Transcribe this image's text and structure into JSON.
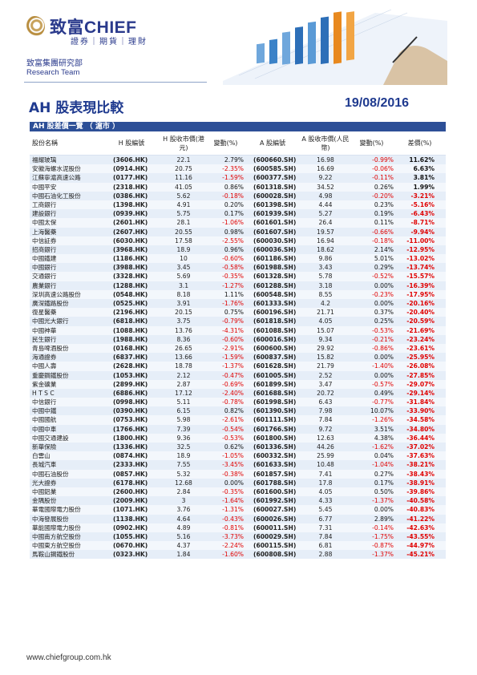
{
  "header": {
    "brand": "致富CHIEF",
    "brand_sub": "證券｜期貨｜理財",
    "dept_cn": "致富集團研究部",
    "dept_en": "Research Team",
    "report_title": "AH 股表現比較",
    "report_date": "19/08/2016"
  },
  "table": {
    "title": "AH 股差價一覽 （ 滬市 ）",
    "columns": [
      "股份名稱",
      "H 股編號",
      "H 股收市價(港元)",
      "變動(%)",
      "A 股編號",
      "A 股收市價(人民幣)",
      "變動(%)",
      "差價(%)"
    ],
    "rows": [
      [
        "福耀玻璃",
        "(3606.HK)",
        "22.1",
        "2.79%",
        "(600660.SH)",
        "16.98",
        "-0.99%",
        "11.62%"
      ],
      [
        "安徽海螺水泥股份",
        "(0914.HK)",
        "20.75",
        "-2.35%",
        "(600585.SH)",
        "16.69",
        "-0.06%",
        "6.63%"
      ],
      [
        "江蘇寧滬高速公路",
        "(0177.HK)",
        "11.16",
        "-1.59%",
        "(600377.SH)",
        "9.22",
        "-0.11%",
        "3.81%"
      ],
      [
        "中國平安",
        "(2318.HK)",
        "41.05",
        "0.86%",
        "(601318.SH)",
        "34.52",
        "0.26%",
        "1.99%"
      ],
      [
        "中國石油化工股份",
        "(0386.HK)",
        "5.62",
        "-0.18%",
        "(600028.SH)",
        "4.98",
        "-0.20%",
        "-3.21%"
      ],
      [
        "工商銀行",
        "(1398.HK)",
        "4.91",
        "0.20%",
        "(601398.SH)",
        "4.44",
        "0.23%",
        "-5.16%"
      ],
      [
        "建設銀行",
        "(0939.HK)",
        "5.75",
        "0.17%",
        "(601939.SH)",
        "5.27",
        "0.19%",
        "-6.43%"
      ],
      [
        "中國太保",
        "(2601.HK)",
        "28.1",
        "-1.06%",
        "(601601.SH)",
        "26.4",
        "0.11%",
        "-8.71%"
      ],
      [
        "上海醫藥",
        "(2607.HK)",
        "20.55",
        "0.98%",
        "(601607.SH)",
        "19.57",
        "-0.66%",
        "-9.94%"
      ],
      [
        "中信証券",
        "(6030.HK)",
        "17.58",
        "-2.55%",
        "(600030.SH)",
        "16.94",
        "-0.18%",
        "-11.00%"
      ],
      [
        "招商銀行",
        "(3968.HK)",
        "18.9",
        "0.96%",
        "(600036.SH)",
        "18.62",
        "2.14%",
        "-12.95%"
      ],
      [
        "中國鐵建",
        "(1186.HK)",
        "10",
        "-0.60%",
        "(601186.SH)",
        "9.86",
        "5.01%",
        "-13.02%"
      ],
      [
        "中國銀行",
        "(3988.HK)",
        "3.45",
        "-0.58%",
        "(601988.SH)",
        "3.43",
        "0.29%",
        "-13.74%"
      ],
      [
        "交通銀行",
        "(3328.HK)",
        "5.69",
        "-0.35%",
        "(601328.SH)",
        "5.78",
        "-0.52%",
        "-15.57%"
      ],
      [
        "農業銀行",
        "(1288.HK)",
        "3.1",
        "-1.27%",
        "(601288.SH)",
        "3.18",
        "0.00%",
        "-16.39%"
      ],
      [
        "深圳高速公路股份",
        "(0548.HK)",
        "8.18",
        "1.11%",
        "(600548.SH)",
        "8.55",
        "-0.23%",
        "-17.95%"
      ],
      [
        "廣深鐵路股份",
        "(0525.HK)",
        "3.91",
        "-1.76%",
        "(601333.SH)",
        "4.2",
        "0.00%",
        "-20.16%"
      ],
      [
        "復星醫藥",
        "(2196.HK)",
        "20.15",
        "0.75%",
        "(600196.SH)",
        "21.71",
        "0.37%",
        "-20.40%"
      ],
      [
        "中國光大銀行",
        "(6818.HK)",
        "3.75",
        "-0.79%",
        "(601818.SH)",
        "4.05",
        "0.25%",
        "-20.59%"
      ],
      [
        "中國神華",
        "(1088.HK)",
        "13.76",
        "-4.31%",
        "(601088.SH)",
        "15.07",
        "-0.53%",
        "-21.69%"
      ],
      [
        "民生銀行",
        "(1988.HK)",
        "8.36",
        "-0.60%",
        "(600016.SH)",
        "9.34",
        "-0.21%",
        "-23.24%"
      ],
      [
        "青島啤酒股份",
        "(0168.HK)",
        "26.65",
        "-2.91%",
        "(600600.SH)",
        "29.92",
        "-0.86%",
        "-23.61%"
      ],
      [
        "海通證券",
        "(6837.HK)",
        "13.66",
        "-1.59%",
        "(600837.SH)",
        "15.82",
        "0.00%",
        "-25.95%"
      ],
      [
        "中國人壽",
        "(2628.HK)",
        "18.78",
        "-1.37%",
        "(601628.SH)",
        "21.79",
        "-1.40%",
        "-26.08%"
      ],
      [
        "重慶鋼鐵股份",
        "(1053.HK)",
        "2.12",
        "-0.47%",
        "(601005.SH)",
        "2.52",
        "0.00%",
        "-27.85%"
      ],
      [
        "紫金礦業",
        "(2899.HK)",
        "2.87",
        "-0.69%",
        "(601899.SH)",
        "3.47",
        "-0.57%",
        "-29.07%"
      ],
      [
        "H T S C",
        "(6886.HK)",
        "17.12",
        "-2.40%",
        "(601688.SH)",
        "20.72",
        "0.49%",
        "-29.14%"
      ],
      [
        "中信銀行",
        "(0998.HK)",
        "5.11",
        "-0.78%",
        "(601998.SH)",
        "6.43",
        "-0.77%",
        "-31.84%"
      ],
      [
        "中國中鐵",
        "(0390.HK)",
        "6.15",
        "0.82%",
        "(601390.SH)",
        "7.98",
        "10.07%",
        "-33.90%"
      ],
      [
        "中國國航",
        "(0753.HK)",
        "5.98",
        "-2.61%",
        "(601111.SH)",
        "7.84",
        "-1.26%",
        "-34.58%"
      ],
      [
        "中國中車",
        "(1766.HK)",
        "7.39",
        "-0.54%",
        "(601766.SH)",
        "9.72",
        "3.51%",
        "-34.80%"
      ],
      [
        "中國交通建設",
        "(1800.HK)",
        "9.36",
        "-0.53%",
        "(601800.SH)",
        "12.63",
        "4.38%",
        "-36.44%"
      ],
      [
        "新華保險",
        "(1336.HK)",
        "32.5",
        "0.62%",
        "(601336.SH)",
        "44.26",
        "-1.62%",
        "-37.02%"
      ],
      [
        "白雲山",
        "(0874.HK)",
        "18.9",
        "-1.05%",
        "(600332.SH)",
        "25.99",
        "0.04%",
        "-37.63%"
      ],
      [
        "長城汽車",
        "(2333.HK)",
        "7.55",
        "-3.45%",
        "(601633.SH)",
        "10.48",
        "-1.04%",
        "-38.21%"
      ],
      [
        "中國石油股份",
        "(0857.HK)",
        "5.32",
        "-0.38%",
        "(601857.SH)",
        "7.41",
        "0.27%",
        "-38.43%"
      ],
      [
        "光大證券",
        "(6178.HK)",
        "12.68",
        "0.00%",
        "(601788.SH)",
        "17.8",
        "0.17%",
        "-38.91%"
      ],
      [
        "中國鋁業",
        "(2600.HK)",
        "2.84",
        "-0.35%",
        "(601600.SH)",
        "4.05",
        "0.50%",
        "-39.86%"
      ],
      [
        "金隅股份",
        "(2009.HK)",
        "3",
        "-1.64%",
        "(601992.SH)",
        "4.33",
        "-1.37%",
        "-40.58%"
      ],
      [
        "華電國際電力股份",
        "(1071.HK)",
        "3.76",
        "-1.31%",
        "(600027.SH)",
        "5.45",
        "0.00%",
        "-40.83%"
      ],
      [
        "中海發展股份",
        "(1138.HK)",
        "4.64",
        "-0.43%",
        "(600026.SH)",
        "6.77",
        "2.89%",
        "-41.22%"
      ],
      [
        "華能國際電力股份",
        "(0902.HK)",
        "4.89",
        "-0.81%",
        "(600011.SH)",
        "7.31",
        "-0.14%",
        "-42.63%"
      ],
      [
        "中國南方航空股份",
        "(1055.HK)",
        "5.16",
        "-3.73%",
        "(600029.SH)",
        "7.84",
        "-1.75%",
        "-43.55%"
      ],
      [
        "中國東方航空股份",
        "(0670.HK)",
        "4.37",
        "-2.24%",
        "(600115.SH)",
        "6.81",
        "-0.87%",
        "-44.97%"
      ],
      [
        "馬鞍山鋼鐵股份",
        "(0323.HK)",
        "1.84",
        "-1.60%",
        "(600808.SH)",
        "2.88",
        "-1.37%",
        "-45.21%"
      ]
    ]
  },
  "colors": {
    "brand_blue": "#2a3a8c",
    "header_bar": "#2d4f97",
    "negative": "#e00000"
  },
  "footer": {
    "url": "www.chiefgroup.com.hk"
  }
}
